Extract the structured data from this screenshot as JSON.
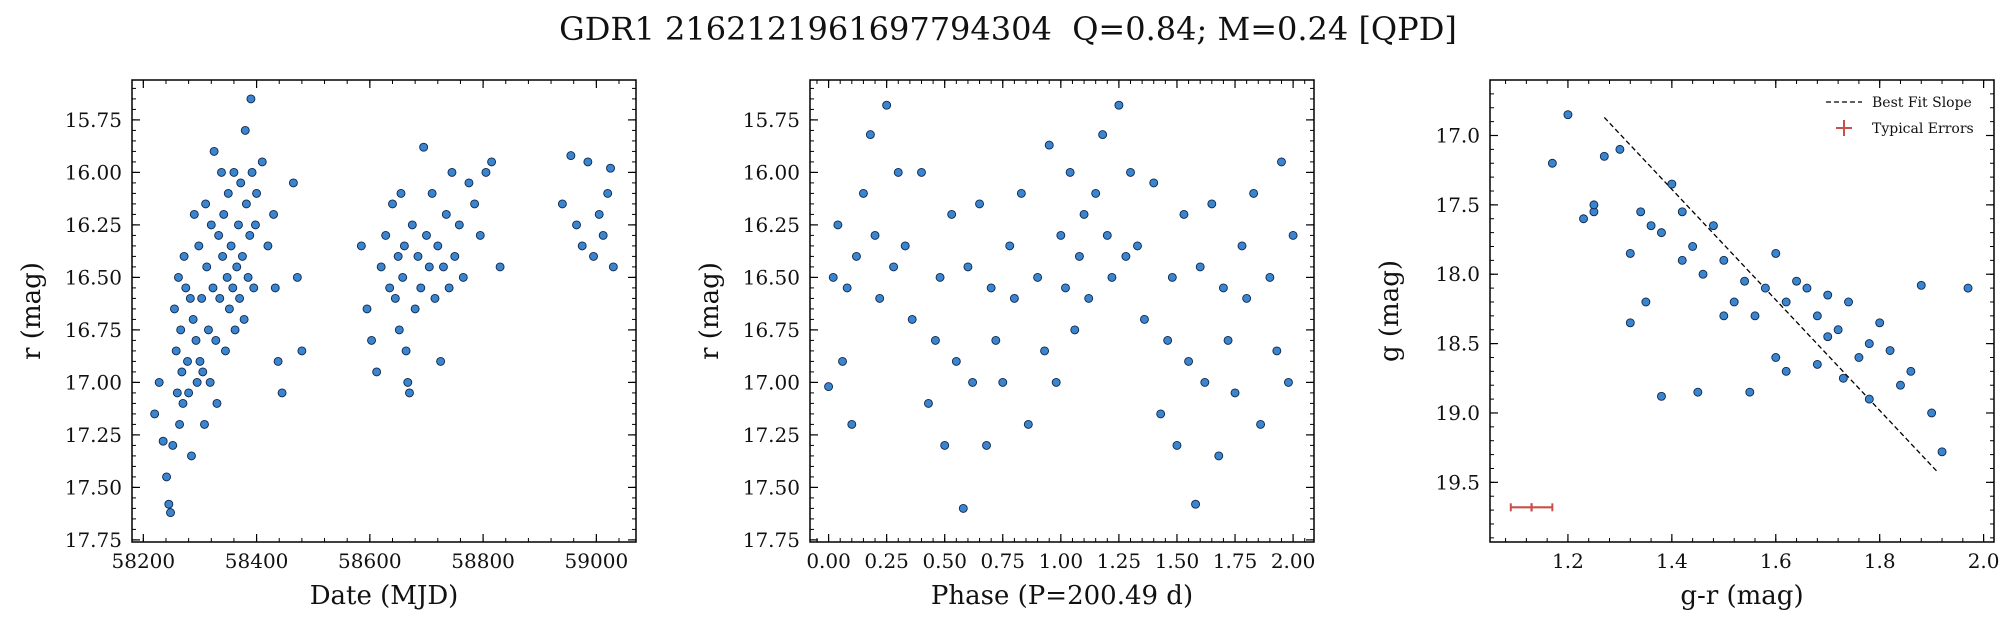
{
  "title": "GDR1 2162121961697794304  Q=0.84; M=0.24 [QPD]",
  "colors": {
    "point": "#3a85d0",
    "edge": "#10264a",
    "fit": "#000000",
    "error": "#c8504a"
  },
  "chart_data": [
    {
      "type": "scatter",
      "xlabel": "Date (MJD)",
      "ylabel": "r (mag)",
      "xlim": [
        58180,
        59070
      ],
      "ylim": [
        17.76,
        15.56
      ],
      "y_inverted": true,
      "xticks": [
        58200,
        58400,
        58600,
        58800,
        59000
      ],
      "xtick_labels": [
        "58200",
        "58400",
        "58600",
        "58800",
        "59000"
      ],
      "yticks": [
        15.75,
        16.0,
        16.25,
        16.5,
        16.75,
        17.0,
        17.25,
        17.5,
        17.75
      ],
      "ytick_labels": [
        "15.75",
        "16.00",
        "16.25",
        "16.50",
        "16.75",
        "17.00",
        "17.25",
        "17.50",
        "17.75"
      ],
      "x": [
        58220,
        58228,
        58235,
        58241,
        58245,
        58248,
        58252,
        58255,
        58258,
        58260,
        58262,
        58264,
        58266,
        58268,
        58270,
        58272,
        58275,
        58278,
        58280,
        58283,
        58285,
        58288,
        58290,
        58293,
        58295,
        58298,
        58300,
        58303,
        58305,
        58308,
        58310,
        58312,
        58315,
        58318,
        58320,
        58323,
        58325,
        58328,
        58330,
        58333,
        58335,
        58338,
        58340,
        58342,
        58345,
        58348,
        58350,
        58352,
        58355,
        58358,
        58360,
        58362,
        58365,
        58368,
        58370,
        58372,
        58375,
        58378,
        58380,
        58382,
        58385,
        58388,
        58390,
        58392,
        58395,
        58398,
        58400,
        58410,
        58420,
        58430,
        58433,
        58438,
        58445,
        58465,
        58472,
        58480,
        58585,
        58595,
        58603,
        58612,
        58620,
        58628,
        58635,
        58640,
        58645,
        58650,
        58652,
        58655,
        58658,
        58661,
        58664,
        58667,
        58670,
        58675,
        58680,
        58685,
        58690,
        58695,
        58700,
        58705,
        58710,
        58715,
        58720,
        58725,
        58730,
        58735,
        58740,
        58745,
        58750,
        58758,
        58765,
        58775,
        58785,
        58795,
        58805,
        58815,
        58830,
        58940,
        58955,
        58965,
        58975,
        58985,
        58995,
        59005,
        59012,
        59020,
        59025,
        59030
      ],
      "y": [
        17.15,
        17.0,
        17.28,
        17.45,
        17.58,
        17.62,
        17.3,
        16.65,
        16.85,
        17.05,
        16.5,
        17.2,
        16.75,
        16.95,
        17.1,
        16.4,
        16.55,
        16.9,
        17.05,
        16.6,
        17.35,
        16.7,
        16.2,
        16.8,
        17.0,
        16.35,
        16.9,
        16.6,
        16.95,
        17.2,
        16.15,
        16.45,
        16.75,
        17.0,
        16.25,
        16.55,
        15.9,
        16.8,
        17.1,
        16.3,
        16.6,
        16.0,
        16.4,
        16.2,
        16.85,
        16.5,
        16.1,
        16.65,
        16.35,
        16.55,
        16.0,
        16.75,
        16.45,
        16.25,
        16.6,
        16.05,
        16.4,
        16.7,
        15.8,
        16.15,
        16.5,
        16.3,
        15.65,
        16.0,
        16.55,
        16.25,
        16.1,
        15.95,
        16.35,
        16.2,
        16.55,
        16.9,
        17.05,
        16.05,
        16.5,
        16.85,
        16.35,
        16.65,
        16.8,
        16.95,
        16.45,
        16.3,
        16.55,
        16.15,
        16.6,
        16.4,
        16.75,
        16.1,
        16.5,
        16.35,
        16.85,
        17.0,
        17.05,
        16.25,
        16.65,
        16.4,
        16.55,
        15.88,
        16.3,
        16.45,
        16.1,
        16.6,
        16.35,
        16.9,
        16.45,
        16.2,
        16.55,
        16.0,
        16.4,
        16.25,
        16.5,
        16.05,
        16.15,
        16.3,
        16.0,
        15.95,
        16.45,
        16.15,
        15.92,
        16.25,
        16.35,
        15.95,
        16.4,
        16.2,
        16.3,
        16.1,
        15.98,
        16.45
      ],
      "note": "selected visible points"
    },
    {
      "type": "scatter",
      "xlabel": "Phase (P=200.49 d)",
      "ylabel": "r (mag)",
      "xlim": [
        -0.08,
        2.09
      ],
      "ylim": [
        17.76,
        15.56
      ],
      "y_inverted": true,
      "xticks": [
        0.0,
        0.25,
        0.5,
        0.75,
        1.0,
        1.25,
        1.5,
        1.75,
        2.0
      ],
      "xtick_labels": [
        "0.00",
        "0.25",
        "0.50",
        "0.75",
        "1.00",
        "1.25",
        "1.50",
        "1.75",
        "2.00"
      ],
      "yticks": [
        15.75,
        16.0,
        16.25,
        16.5,
        16.75,
        17.0,
        17.25,
        17.5,
        17.75
      ],
      "ytick_labels": [
        "15.75",
        "16.00",
        "16.25",
        "16.50",
        "16.75",
        "17.00",
        "17.25",
        "17.50",
        "17.75"
      ],
      "x": [
        0.0,
        0.02,
        0.04,
        0.06,
        0.08,
        0.1,
        0.12,
        0.15,
        0.18,
        0.2,
        0.22,
        0.25,
        0.28,
        0.3,
        0.33,
        0.36,
        0.4,
        0.43,
        0.46,
        0.48,
        0.5,
        0.53,
        0.55,
        0.58,
        0.6,
        0.62,
        0.65,
        0.68,
        0.7,
        0.72,
        0.75,
        0.78,
        0.8,
        0.83,
        0.86,
        0.9,
        0.93,
        0.95,
        0.98,
        1.0,
        1.02,
        1.04,
        1.06,
        1.08,
        1.1,
        1.12,
        1.15,
        1.18,
        1.2,
        1.22,
        1.25,
        1.28,
        1.3,
        1.33,
        1.36,
        1.4,
        1.43,
        1.46,
        1.48,
        1.5,
        1.53,
        1.55,
        1.58,
        1.6,
        1.62,
        1.65,
        1.68,
        1.7,
        1.72,
        1.75,
        1.78,
        1.8,
        1.83,
        1.86,
        1.9,
        1.93,
        1.95,
        1.98,
        2.0
      ],
      "y": [
        17.02,
        16.5,
        16.25,
        16.9,
        16.55,
        17.2,
        16.4,
        16.1,
        15.82,
        16.3,
        16.6,
        15.68,
        16.45,
        16.0,
        16.35,
        16.7,
        16.0,
        17.1,
        16.8,
        16.5,
        17.3,
        16.2,
        16.9,
        17.6,
        16.45,
        17.0,
        16.15,
        17.3,
        16.55,
        16.8,
        17.0,
        16.35,
        16.6,
        16.1,
        17.2,
        16.5,
        16.85,
        15.87,
        17.0,
        16.3,
        16.55,
        16.0,
        16.75,
        16.4,
        16.2,
        16.6,
        16.1,
        15.82,
        16.3,
        16.5,
        15.68,
        16.4,
        16.0,
        16.35,
        16.7,
        16.05,
        17.15,
        16.8,
        16.5,
        17.3,
        16.2,
        16.9,
        17.58,
        16.45,
        17.0,
        16.15,
        17.35,
        16.55,
        16.8,
        17.05,
        16.35,
        16.6,
        16.1,
        17.2,
        16.5,
        16.85,
        15.95,
        17.0,
        16.3
      ],
      "note": "selected visible points"
    },
    {
      "type": "scatter",
      "xlabel": "g-r (mag)",
      "ylabel": "g (mag)",
      "xlim": [
        1.05,
        2.02
      ],
      "ylim": [
        19.93,
        16.6
      ],
      "y_inverted": true,
      "xticks": [
        1.2,
        1.4,
        1.6,
        1.8,
        2.0
      ],
      "xtick_labels": [
        "1.2",
        "1.4",
        "1.6",
        "1.8",
        "2.0"
      ],
      "yticks": [
        17.0,
        17.5,
        18.0,
        18.5,
        19.0,
        19.5
      ],
      "ytick_labels": [
        "17.0",
        "17.5",
        "18.0",
        "18.5",
        "19.0",
        "19.5"
      ],
      "x": [
        1.17,
        1.2,
        1.23,
        1.25,
        1.27,
        1.3,
        1.32,
        1.34,
        1.36,
        1.38,
        1.4,
        1.42,
        1.44,
        1.46,
        1.48,
        1.5,
        1.52,
        1.54,
        1.56,
        1.58,
        1.6,
        1.62,
        1.64,
        1.66,
        1.68,
        1.7,
        1.72,
        1.74,
        1.76,
        1.78,
        1.8,
        1.82,
        1.84,
        1.86,
        1.88,
        1.9,
        1.92,
        1.97,
        1.38,
        1.45,
        1.55,
        1.62,
        1.68,
        1.73,
        1.35,
        1.5,
        1.6,
        1.7,
        1.78,
        1.25,
        1.32,
        1.42
      ],
      "y": [
        17.2,
        16.85,
        17.6,
        17.55,
        17.15,
        17.1,
        18.35,
        17.55,
        17.65,
        17.7,
        17.35,
        17.55,
        17.8,
        18.0,
        17.65,
        17.9,
        18.2,
        18.05,
        18.3,
        18.1,
        17.85,
        18.2,
        18.05,
        18.1,
        18.3,
        18.15,
        18.4,
        18.2,
        18.6,
        18.5,
        18.35,
        18.55,
        18.8,
        18.7,
        18.08,
        19.0,
        19.28,
        18.1,
        18.88,
        18.85,
        18.85,
        18.7,
        18.65,
        18.75,
        18.2,
        18.3,
        18.6,
        18.45,
        18.9,
        17.5,
        17.85,
        17.9
      ],
      "note": "selected visible points",
      "fit_line": {
        "label": "Best Fit Slope",
        "x": [
          1.27,
          1.91
        ],
        "y": [
          16.87,
          19.42
        ]
      },
      "typical_error": {
        "label": "Typical Errors",
        "x": 1.13,
        "y": 19.68,
        "xerr": 0.04,
        "yerr": 0.03
      }
    }
  ]
}
